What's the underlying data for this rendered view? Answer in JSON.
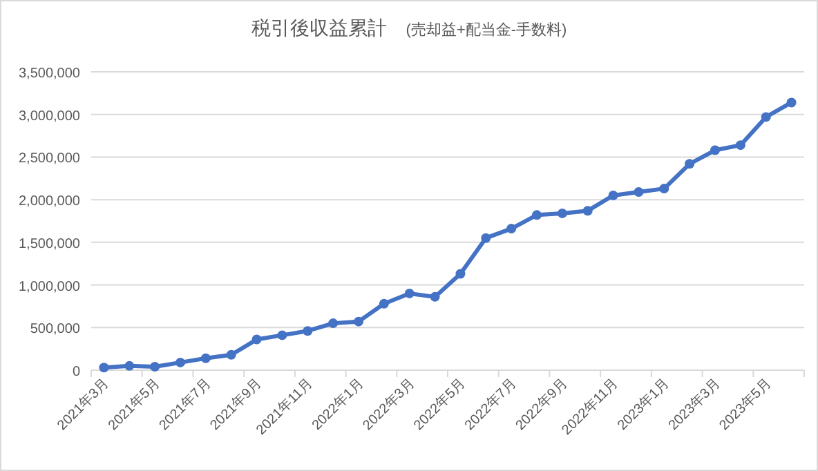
{
  "chart_data": {
    "type": "line",
    "title": "税引後収益累計",
    "subtitle": "(売却益+配当金-手数料)",
    "categories": [
      "2021年3月",
      null,
      "2021年5月",
      null,
      "2021年7月",
      null,
      "2021年9月",
      null,
      "2021年11月",
      null,
      "2022年1月",
      null,
      "2022年3月",
      null,
      "2022年5月",
      null,
      "2022年7月",
      null,
      "2022年9月",
      null,
      "2022年11月",
      null,
      "2023年1月",
      null,
      "2023年3月",
      null,
      "2023年5月",
      null
    ],
    "series": [
      {
        "color": "#4472c4",
        "values": [
          30000,
          50000,
          40000,
          90000,
          140000,
          180000,
          360000,
          410000,
          460000,
          550000,
          570000,
          780000,
          900000,
          860000,
          1130000,
          1550000,
          1660000,
          1820000,
          1840000,
          1870000,
          2050000,
          2090000,
          2130000,
          2420000,
          2580000,
          2640000,
          2970000,
          3140000
        ]
      }
    ],
    "ylim": [
      0,
      3500000
    ],
    "yticks": [
      {
        "value": 0,
        "label": "0"
      },
      {
        "value": 500000,
        "label": "500,000"
      },
      {
        "value": 1000000,
        "label": "1,000,000"
      },
      {
        "value": 1500000,
        "label": "1,500,000"
      },
      {
        "value": 2000000,
        "label": "2,000,000"
      },
      {
        "value": 2500000,
        "label": "2,500,000"
      },
      {
        "value": 3000000,
        "label": "3,000,000"
      },
      {
        "value": 3500000,
        "label": "3,500,000"
      }
    ],
    "grid": "y",
    "marker": "circle",
    "line_style": "solid"
  }
}
